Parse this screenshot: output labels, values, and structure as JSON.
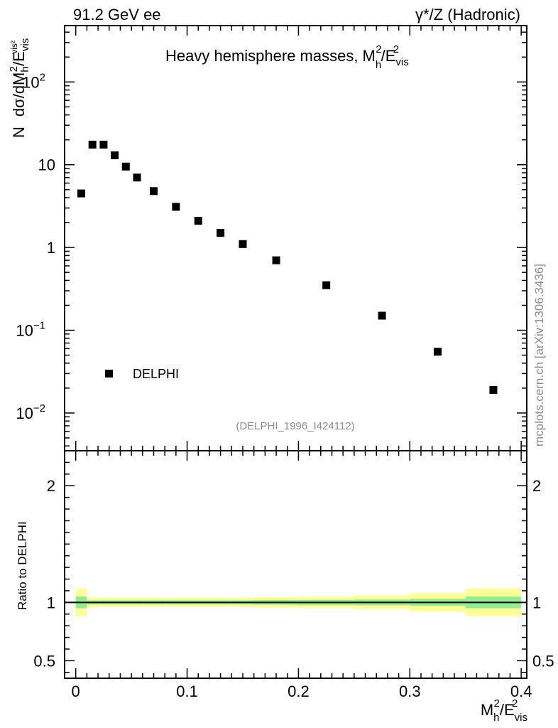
{
  "header": {
    "left": "91.2 GeV ee",
    "right_symbol": "γ*/Z",
    "right_text": "(Hadronic)"
  },
  "side_label": "mcplots.cern.ch [arXiv:1306.3436]",
  "chart_data": [
    {
      "type": "scatter",
      "title": "Heavy hemisphere masses, M",
      "title_parts": {
        "base": "Heavy hemisphere masses, M",
        "sub_h": "h",
        "sup_2": "2",
        "slash_E": "/E",
        "sub_vis": "vis"
      },
      "ylabel_parts": {
        "n": "N",
        "expr": "dσ/dM",
        "sub_h": "h",
        "sup_2": "2",
        "slash_E": "/E",
        "sub_vis": "vis",
        "sup_vis2": "vis²"
      },
      "yscale": "log",
      "xlim": [
        -0.01,
        0.405
      ],
      "ylim": [
        0.0035,
        480
      ],
      "y_ticks": [
        {
          "v": 0.01,
          "base": "10",
          "exp": "−2"
        },
        {
          "v": 0.1,
          "base": "10",
          "exp": "−1"
        },
        {
          "v": 1,
          "base": "1",
          "exp": ""
        },
        {
          "v": 10,
          "base": "10",
          "exp": ""
        },
        {
          "v": 100,
          "base": "10",
          "exp": "2"
        }
      ],
      "series": [
        {
          "name": "DELPHI",
          "color": "#000000",
          "x": [
            0.005,
            0.015,
            0.025,
            0.035,
            0.045,
            0.055,
            0.07,
            0.09,
            0.11,
            0.13,
            0.15,
            0.18,
            0.225,
            0.275,
            0.325,
            0.375
          ],
          "y": [
            4.5,
            17.5,
            17.5,
            13.0,
            9.5,
            7.0,
            4.8,
            3.1,
            2.1,
            1.5,
            1.1,
            0.7,
            0.35,
            0.15,
            0.055,
            0.019
          ]
        }
      ],
      "legend_position": "lower-left",
      "annotation": "(DELPHI_1996_I424112)"
    },
    {
      "type": "area",
      "ylabel": "Ratio to DELPHI",
      "xlabel_parts": {
        "base": "M",
        "sub_h": "h",
        "sup_2": "2",
        "slash_E": "/E",
        "sub_vis": "vis",
        "sup_E2": "2"
      },
      "xlim": [
        -0.01,
        0.405
      ],
      "ylim": [
        0.35,
        2.3
      ],
      "x_ticks": [
        {
          "v": 0,
          "label": "0"
        },
        {
          "v": 0.1,
          "label": "0.1"
        },
        {
          "v": 0.2,
          "label": "0.2"
        },
        {
          "v": 0.3,
          "label": "0.3"
        },
        {
          "v": 0.4,
          "label": "0.4"
        }
      ],
      "y_ticks": [
        {
          "v": 0.5,
          "label": "0.5"
        },
        {
          "v": 1,
          "label": "1"
        },
        {
          "v": 2,
          "label": "2"
        }
      ],
      "reference_line": 1,
      "bands": {
        "bins": [
          [
            0.0,
            0.01
          ],
          [
            0.01,
            0.02
          ],
          [
            0.02,
            0.03
          ],
          [
            0.03,
            0.04
          ],
          [
            0.04,
            0.05
          ],
          [
            0.05,
            0.06
          ],
          [
            0.06,
            0.08
          ],
          [
            0.08,
            0.1
          ],
          [
            0.1,
            0.12
          ],
          [
            0.12,
            0.14
          ],
          [
            0.14,
            0.16
          ],
          [
            0.16,
            0.2
          ],
          [
            0.2,
            0.25
          ],
          [
            0.25,
            0.3
          ],
          [
            0.3,
            0.35
          ],
          [
            0.35,
            0.4
          ]
        ],
        "inner_color": "#90ee90",
        "outer_color": "#ffff9a",
        "inner": [
          0.05,
          0.018,
          0.018,
          0.018,
          0.018,
          0.018,
          0.018,
          0.018,
          0.018,
          0.018,
          0.018,
          0.02,
          0.022,
          0.025,
          0.03,
          0.05
        ],
        "outer": [
          0.12,
          0.045,
          0.04,
          0.04,
          0.04,
          0.04,
          0.04,
          0.04,
          0.04,
          0.04,
          0.04,
          0.045,
          0.05,
          0.06,
          0.08,
          0.12
        ]
      }
    }
  ]
}
